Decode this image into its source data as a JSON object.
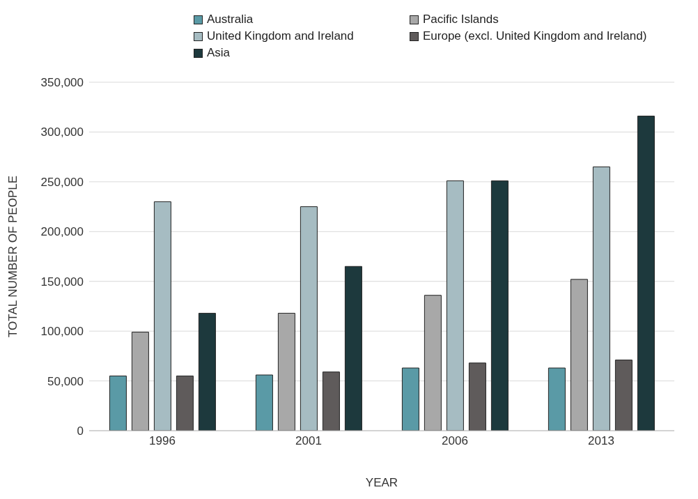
{
  "chart_data": {
    "type": "bar",
    "xlabel": "YEAR",
    "ylabel": "TOTAL NUMBER OF PEOPLE",
    "categories": [
      "1996",
      "2001",
      "2006",
      "2013"
    ],
    "series": [
      {
        "name": "Australia",
        "color": "#5a9aa6",
        "values": [
          55000,
          56000,
          63000,
          63000
        ]
      },
      {
        "name": "Pacific Islands",
        "color": "#a8a8a8",
        "values": [
          99000,
          118000,
          136000,
          152000
        ]
      },
      {
        "name": "United Kingdom and Ireland",
        "color": "#a6bcc2",
        "values": [
          230000,
          225000,
          251000,
          265000
        ]
      },
      {
        "name": "Europe (excl. United Kingdom and Ireland)",
        "color": "#5f5b5b",
        "values": [
          55000,
          59000,
          68000,
          71000
        ]
      },
      {
        "name": "Asia",
        "color": "#1d393d",
        "values": [
          118000,
          165000,
          251000,
          316000
        ]
      }
    ],
    "ylim": [
      0,
      350000
    ],
    "yticks": [
      {
        "value": 0,
        "label": "0"
      },
      {
        "value": 50000,
        "label": "50,000"
      },
      {
        "value": 100000,
        "label": "100,000"
      },
      {
        "value": 150000,
        "label": "150,000"
      },
      {
        "value": 200000,
        "label": "200,000"
      },
      {
        "value": 250000,
        "label": "250,000"
      },
      {
        "value": 300000,
        "label": "300,000"
      },
      {
        "value": 350000,
        "label": "350,000"
      }
    ],
    "grid": "y",
    "legend": "top"
  }
}
